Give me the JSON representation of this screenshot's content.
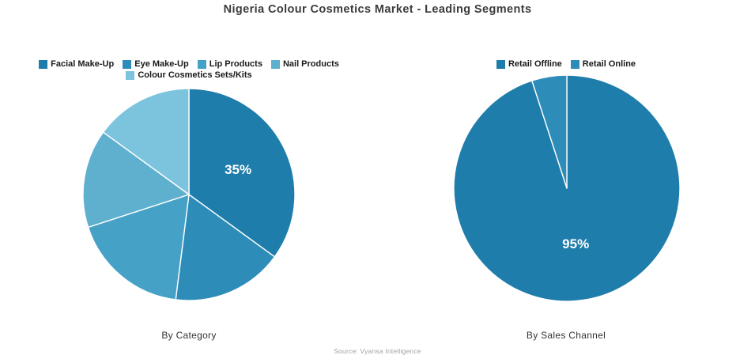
{
  "title": "Nigeria Colour Cosmetics Market - Leading Segments",
  "source": "Source: Vyansa Intelligence",
  "colors": {
    "background": "#ffffff",
    "title_text": "#3b3b3b",
    "legend_text": "#191919",
    "caption_text": "#333333",
    "source_text": "#a2a2a2",
    "slice_border": "#ffffff"
  },
  "chart_data": [
    {
      "type": "pie",
      "title": "By Category",
      "legend_position": "top",
      "start_angle_deg": 0,
      "direction": "clockwise",
      "segments": [
        {
          "label": "Facial Make-Up",
          "value": 35,
          "color": "#1f7dab",
          "data_label": "35%"
        },
        {
          "label": "Eye Make-Up",
          "value": 17,
          "color": "#2e8cb8",
          "data_label": ""
        },
        {
          "label": "Lip Products",
          "value": 18,
          "color": "#45a2c6",
          "data_label": ""
        },
        {
          "label": "Nail Products",
          "value": 15,
          "color": "#5fb0cf",
          "data_label": ""
        },
        {
          "label": "Colour Cosmetics Sets/Kits",
          "value": 15,
          "color": "#7cc3de",
          "data_label": ""
        }
      ]
    },
    {
      "type": "pie",
      "title": "By Sales Channel",
      "legend_position": "top",
      "start_angle_deg": 0,
      "direction": "clockwise",
      "segments": [
        {
          "label": "Retail Offline",
          "value": 95,
          "color": "#1f7dab",
          "data_label": "95%"
        },
        {
          "label": "Retail Online",
          "value": 5,
          "color": "#2e8cb8",
          "data_label": ""
        }
      ]
    }
  ]
}
